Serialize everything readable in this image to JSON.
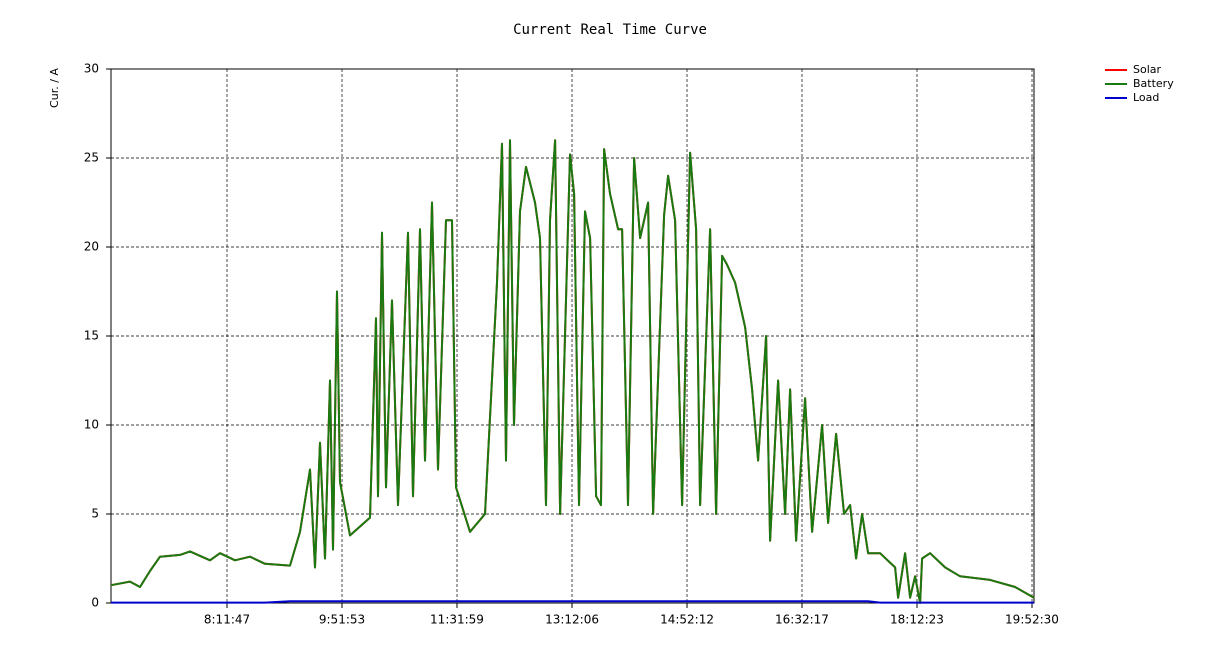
{
  "chart_data": {
    "type": "line",
    "title": "Current Real Time Curve",
    "y_label": "Cur. / A",
    "x": [
      23448,
      24440,
      24963,
      25485,
      26007,
      27052,
      27574,
      28619,
      29141,
      29925,
      30708,
      31491,
      32797,
      33319,
      33842,
      34103,
      34364,
      34625,
      34886,
      35043,
      35252,
      35409,
      35931,
      36976,
      37289,
      37394,
      37603,
      37812,
      38125,
      38439,
      38961,
      39222,
      39588,
      39849,
      40214,
      40528,
      40946,
      41259,
      41468,
      42199,
      42983,
      43610,
      43871,
      44080,
      44289,
      44498,
      44811,
      45125,
      45595,
      45856,
      46169,
      46378,
      46640,
      46901,
      47423,
      47632,
      47893,
      48206,
      48468,
      48781,
      49042,
      49199,
      49512,
      49930,
      50139,
      50452,
      50766,
      51079,
      51497,
      51758,
      52333,
      52542,
      52907,
      53273,
      53691,
      54004,
      54213,
      54736,
      55049,
      55362,
      55624,
      56041,
      56564,
      56929,
      57243,
      57661,
      57870,
      58288,
      58653,
      58914,
      59228,
      59698,
      60063,
      60586,
      60899,
      61317,
      61735,
      62048,
      62362,
      62675,
      62988,
      63615,
      64398,
      64555,
      64921,
      65182,
      65443,
      65704,
      65809,
      66227,
      67010,
      67794,
      69361,
      70666,
      71654
    ],
    "series": [
      {
        "name": "Solar",
        "color": "#ff0000",
        "values": [
          1.0,
          1.2,
          0.9,
          1.8,
          2.6,
          2.7,
          2.9,
          2.4,
          2.8,
          2.4,
          2.6,
          2.2,
          2.1,
          4.0,
          7.5,
          2.0,
          9.0,
          2.5,
          12.5,
          3.0,
          17.5,
          6.8,
          3.8,
          4.8,
          16.0,
          6.0,
          20.8,
          6.5,
          17.0,
          5.5,
          20.8,
          6.0,
          21.0,
          8.0,
          22.5,
          7.5,
          21.5,
          21.5,
          6.5,
          4.0,
          5.0,
          18.0,
          25.8,
          8.0,
          26.0,
          10.0,
          22.0,
          24.5,
          22.5,
          20.5,
          5.5,
          21.5,
          26.0,
          5.0,
          25.2,
          23.0,
          5.5,
          22.0,
          20.5,
          6.0,
          5.5,
          25.5,
          23.0,
          21.0,
          21.0,
          5.5,
          25.0,
          20.5,
          22.5,
          5.0,
          21.8,
          24.0,
          21.5,
          5.5,
          25.3,
          21.0,
          5.5,
          21.0,
          5.0,
          19.5,
          19.0,
          18.0,
          15.5,
          12.0,
          8.0,
          15.0,
          3.5,
          12.5,
          5.0,
          12.0,
          3.5,
          11.5,
          4.0,
          10.0,
          4.5,
          9.5,
          5.0,
          5.5,
          2.5,
          5.0,
          2.8,
          2.8,
          2.0,
          0.3,
          2.8,
          0.3,
          1.5,
          0.0,
          2.5,
          2.8,
          2.0,
          1.5,
          1.3,
          0.9,
          0.3
        ]
      },
      {
        "name": "Battery",
        "color": "#1a7a12",
        "values": [
          1.0,
          1.2,
          0.9,
          1.8,
          2.6,
          2.7,
          2.9,
          2.4,
          2.8,
          2.4,
          2.6,
          2.2,
          2.1,
          4.0,
          7.5,
          2.0,
          9.0,
          2.5,
          12.5,
          3.0,
          17.5,
          6.8,
          3.8,
          4.8,
          16.0,
          6.0,
          20.8,
          6.5,
          17.0,
          5.5,
          20.8,
          6.0,
          21.0,
          8.0,
          22.5,
          7.5,
          21.5,
          21.5,
          6.5,
          4.0,
          5.0,
          18.0,
          25.8,
          8.0,
          26.0,
          10.0,
          22.0,
          24.5,
          22.5,
          20.5,
          5.5,
          21.5,
          26.0,
          5.0,
          25.2,
          23.0,
          5.5,
          22.0,
          20.5,
          6.0,
          5.5,
          25.5,
          23.0,
          21.0,
          21.0,
          5.5,
          25.0,
          20.5,
          22.5,
          5.0,
          21.8,
          24.0,
          21.5,
          5.5,
          25.3,
          21.0,
          5.5,
          21.0,
          5.0,
          19.5,
          19.0,
          18.0,
          15.5,
          12.0,
          8.0,
          15.0,
          3.5,
          12.5,
          5.0,
          12.0,
          3.5,
          11.5,
          4.0,
          10.0,
          4.5,
          9.5,
          5.0,
          5.5,
          2.5,
          5.0,
          2.8,
          2.8,
          2.0,
          0.3,
          2.8,
          0.3,
          1.5,
          0.0,
          2.5,
          2.8,
          2.0,
          1.5,
          1.3,
          0.9,
          0.3
        ]
      },
      {
        "name": "Load",
        "color": "#0000cc",
        "values": [
          0.02,
          0.02,
          0.02,
          0.02,
          0.02,
          0.02,
          0.02,
          0.02,
          0.02,
          0.02,
          0.02,
          0.02,
          0.1,
          0.1,
          0.1,
          0.1,
          0.1,
          0.1,
          0.1,
          0.1,
          0.1,
          0.1,
          0.1,
          0.1,
          0.1,
          0.1,
          0.1,
          0.1,
          0.1,
          0.1,
          0.1,
          0.1,
          0.1,
          0.1,
          0.1,
          0.1,
          0.1,
          0.1,
          0.1,
          0.1,
          0.1,
          0.1,
          0.1,
          0.1,
          0.1,
          0.1,
          0.1,
          0.1,
          0.1,
          0.1,
          0.1,
          0.1,
          0.1,
          0.1,
          0.1,
          0.1,
          0.1,
          0.1,
          0.1,
          0.1,
          0.1,
          0.1,
          0.1,
          0.1,
          0.1,
          0.1,
          0.1,
          0.1,
          0.1,
          0.1,
          0.1,
          0.1,
          0.1,
          0.1,
          0.1,
          0.1,
          0.1,
          0.1,
          0.1,
          0.1,
          0.1,
          0.1,
          0.1,
          0.1,
          0.1,
          0.1,
          0.1,
          0.1,
          0.1,
          0.1,
          0.1,
          0.1,
          0.1,
          0.1,
          0.1,
          0.1,
          0.1,
          0.1,
          0.1,
          0.1,
          0.1,
          0.02,
          0.02,
          0.02,
          0.02,
          0.02,
          0.02,
          0.02,
          0.02,
          0.02,
          0.02,
          0.02,
          0.02,
          0.02,
          0.02
        ]
      }
    ],
    "xlim": [
      23448,
      71654
    ],
    "xticks": [
      {
        "value": 29507,
        "label": "8:11:47"
      },
      {
        "value": 35513,
        "label": "9:51:53"
      },
      {
        "value": 41519,
        "label": "11:31:59"
      },
      {
        "value": 47526,
        "label": "13:12:06"
      },
      {
        "value": 53532,
        "label": "14:52:12"
      },
      {
        "value": 59537,
        "label": "16:32:17"
      },
      {
        "value": 65543,
        "label": "18:12:23"
      },
      {
        "value": 71550,
        "label": "19:52:30"
      }
    ],
    "ylim": [
      0,
      30
    ],
    "yticks": [
      0,
      5,
      10,
      15,
      20,
      25,
      30
    ],
    "grid": true,
    "legend": "top-right"
  }
}
